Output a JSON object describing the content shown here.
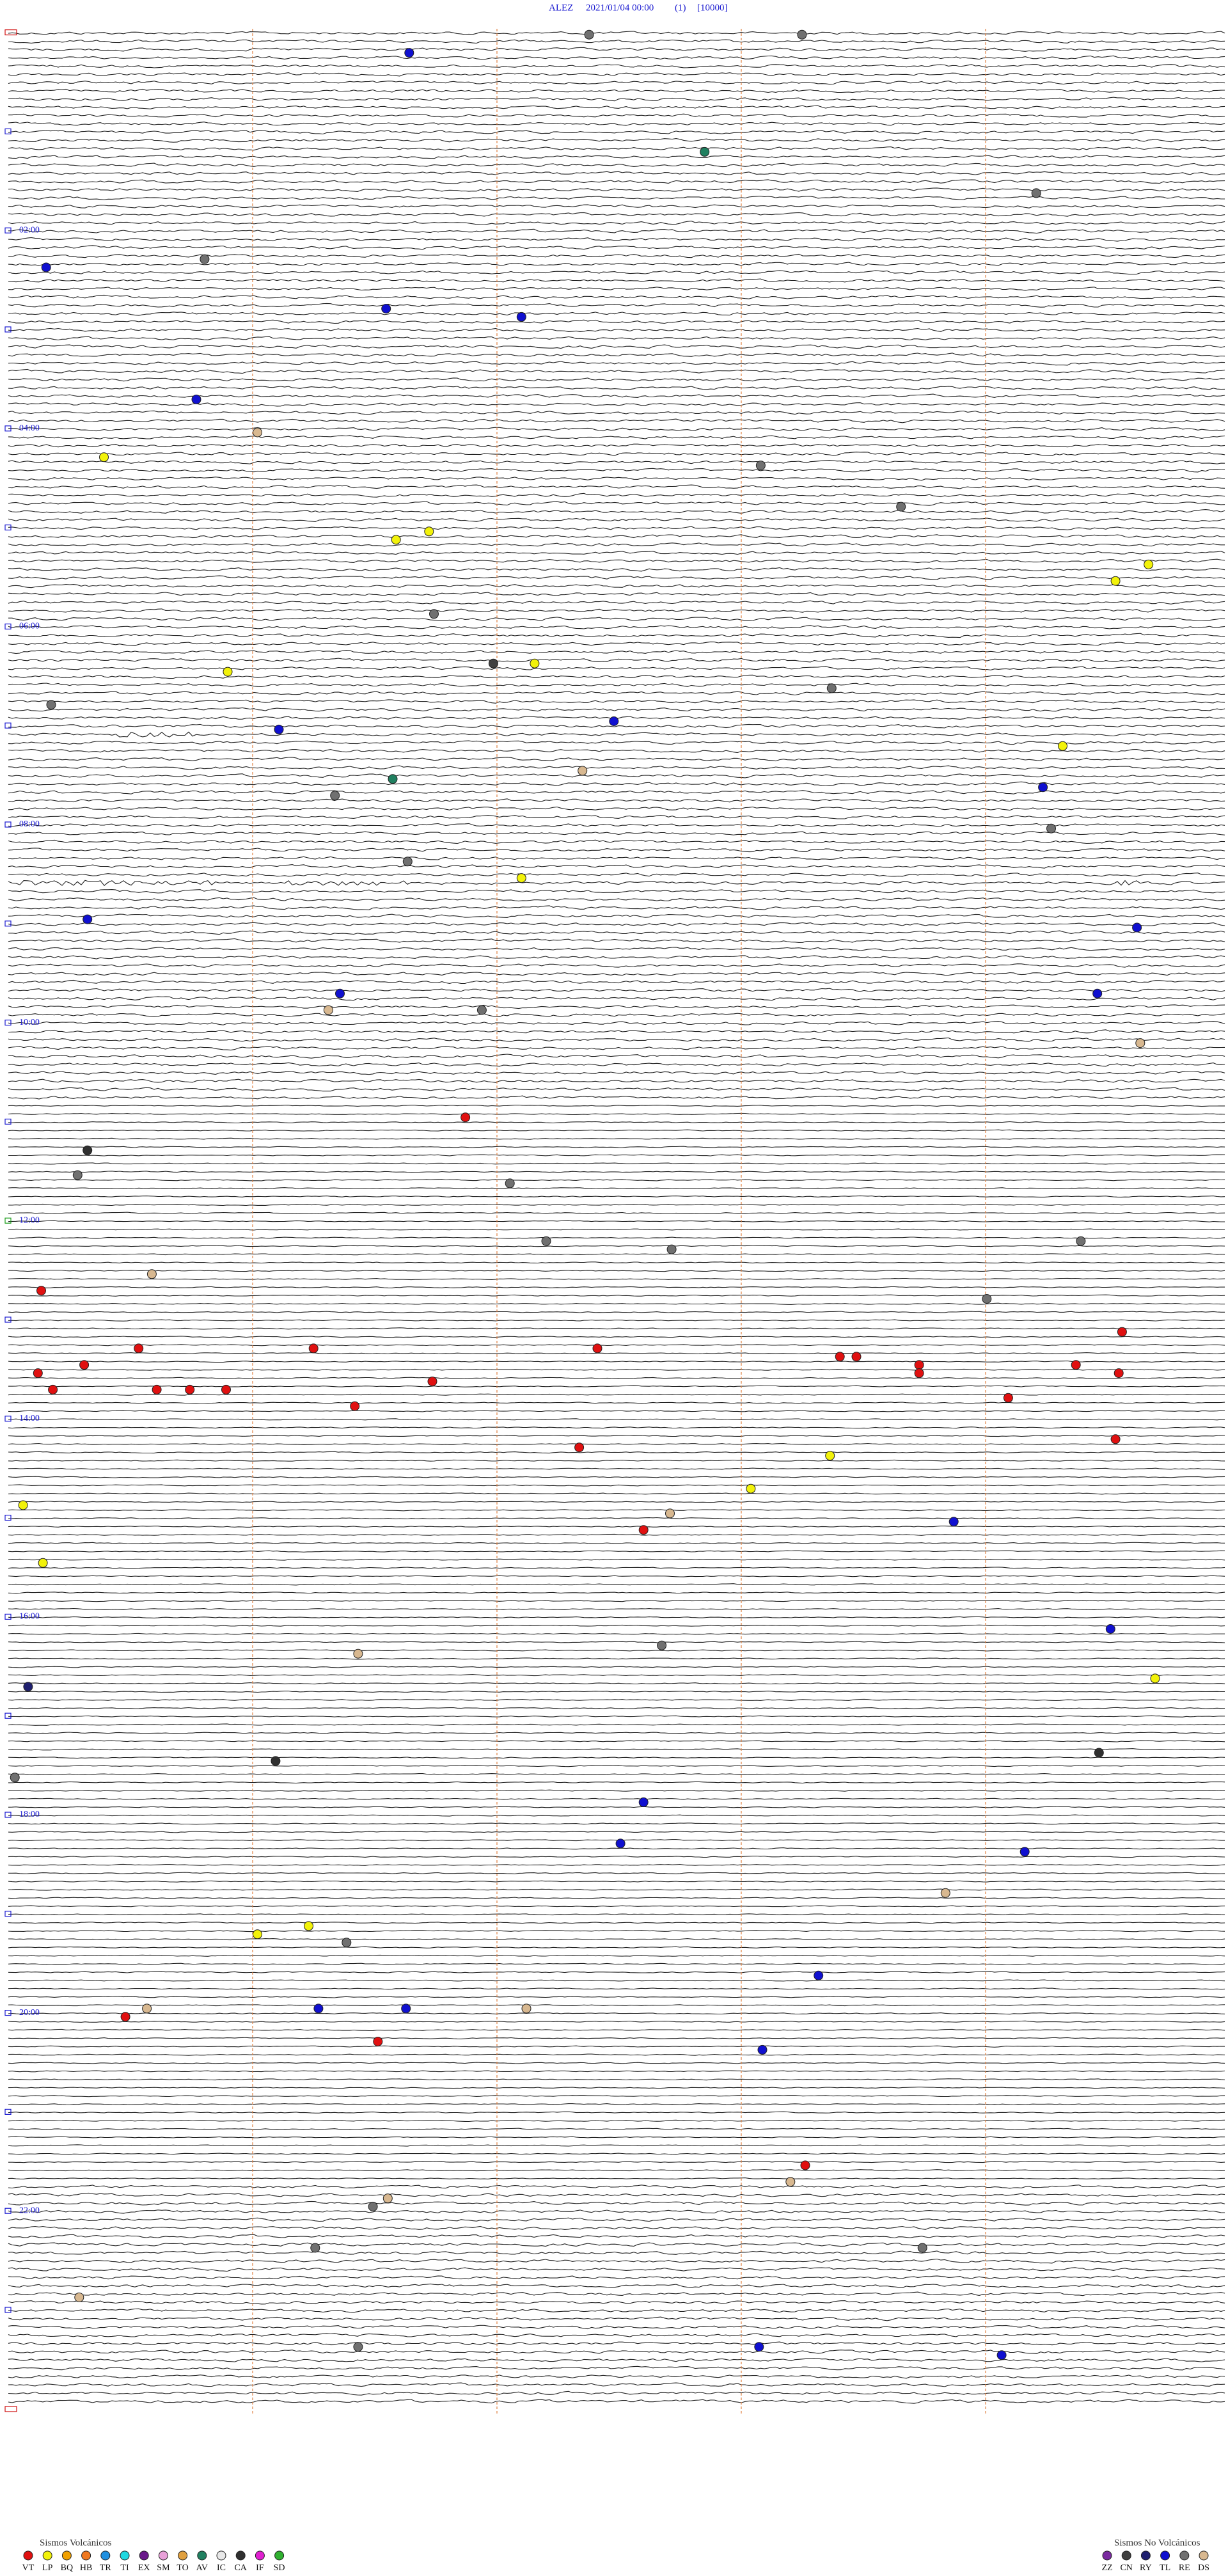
{
  "header": {
    "station": "ALEZ",
    "datetime": "2021/01/04 00:00",
    "index": "(1)",
    "scale": "[10000]"
  },
  "hour_labels": [
    "02:00",
    "04:00",
    "06:00",
    "08:00",
    "10:00",
    "12:00",
    "14:00",
    "16:00",
    "18:00",
    "20:00",
    "22:00"
  ],
  "legend": {
    "volcanic": {
      "title": "Sismos Volcánicos",
      "items": [
        {
          "code": "VT",
          "color": "#e01010"
        },
        {
          "code": "LP",
          "color": "#f2f20a"
        },
        {
          "code": "BQ",
          "color": "#f0a000"
        },
        {
          "code": "HB",
          "color": "#f07820"
        },
        {
          "code": "TR",
          "color": "#2090e0"
        },
        {
          "code": "TI",
          "color": "#20d8e0"
        },
        {
          "code": "EX",
          "color": "#6a1a8a"
        },
        {
          "code": "SM",
          "color": "#e8a0d8"
        },
        {
          "code": "TO",
          "color": "#e0a040"
        },
        {
          "code": "AV",
          "color": "#208060"
        },
        {
          "code": "IC",
          "color": "#e8e8e8"
        },
        {
          "code": "CA",
          "color": "#303030"
        },
        {
          "code": "IF",
          "color": "#e020d0"
        },
        {
          "code": "SD",
          "color": "#30b030"
        }
      ]
    },
    "non_volcanic": {
      "title": "Sismos No Volcánicos",
      "items": [
        {
          "code": "ZZ",
          "color": "#7a2aa0"
        },
        {
          "code": "CN",
          "color": "#404040"
        },
        {
          "code": "RY",
          "color": "#202070"
        },
        {
          "code": "TL",
          "color": "#1010d0"
        },
        {
          "code": "RE",
          "color": "#707070"
        },
        {
          "code": "DS",
          "color": "#d8b890"
        }
      ]
    }
  }
}
